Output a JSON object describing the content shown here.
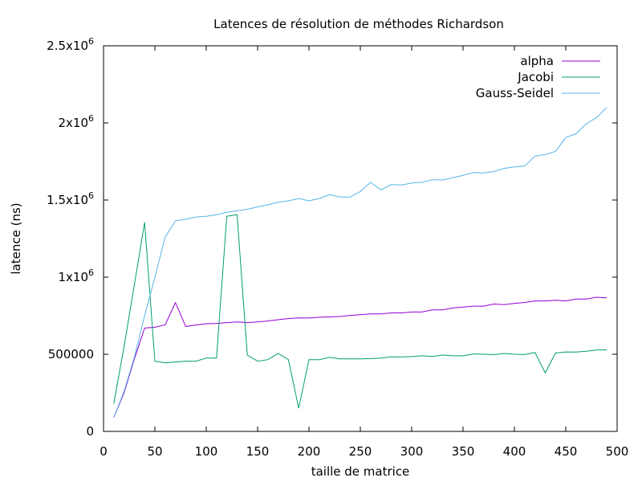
{
  "chart_data": {
    "type": "line",
    "title": "Latences de résolution de méthodes Richardson",
    "xlabel": "taille de matrice",
    "ylabel": "latence (ns)",
    "xlim": [
      0,
      500
    ],
    "ylim": [
      0,
      2500000
    ],
    "x_ticks": [
      0,
      50,
      100,
      150,
      200,
      250,
      300,
      350,
      400,
      450,
      500
    ],
    "y_ticks": [
      {
        "value": 0,
        "mant": "0",
        "exp": ""
      },
      {
        "value": 500000,
        "mant": "500000",
        "exp": ""
      },
      {
        "value": 1000000,
        "mant": "1x10",
        "exp": "6"
      },
      {
        "value": 1500000,
        "mant": "1.5x10",
        "exp": "6"
      },
      {
        "value": 2000000,
        "mant": "2x10",
        "exp": "6"
      },
      {
        "value": 2500000,
        "mant": "2.5x10",
        "exp": "6"
      }
    ],
    "grid": false,
    "legend_position": "top-right",
    "x": [
      10,
      20,
      30,
      40,
      50,
      60,
      70,
      80,
      90,
      100,
      110,
      120,
      130,
      140,
      150,
      160,
      170,
      180,
      190,
      200,
      210,
      220,
      230,
      240,
      250,
      260,
      270,
      280,
      290,
      300,
      310,
      320,
      330,
      340,
      350,
      360,
      370,
      380,
      390,
      400,
      410,
      420,
      430,
      440,
      450,
      460,
      470,
      480,
      490
    ],
    "series": [
      {
        "name": "alpha",
        "color": "#9400d3",
        "values": [
          90000,
          250000,
          470000,
          670000,
          675000,
          690000,
          835000,
          680000,
          690000,
          698000,
          700000,
          705000,
          710000,
          705000,
          710000,
          716000,
          724000,
          732000,
          736000,
          735000,
          740000,
          742000,
          745000,
          752000,
          756000,
          762000,
          762000,
          768000,
          768000,
          774000,
          774000,
          788000,
          788000,
          800000,
          806000,
          812000,
          812000,
          826000,
          822000,
          830000,
          836000,
          846000,
          846000,
          850000,
          846000,
          858000,
          858000,
          870000,
          866000
        ]
      },
      {
        "name": "Jacobi",
        "color": "#009e73",
        "values": [
          180000,
          550000,
          950000,
          1355000,
          455000,
          445000,
          450000,
          455000,
          455000,
          475000,
          475000,
          1395000,
          1405000,
          495000,
          455000,
          465000,
          505000,
          465000,
          150000,
          465000,
          465000,
          480000,
          470000,
          470000,
          470000,
          472000,
          475000,
          483000,
          483000,
          485000,
          490000,
          486000,
          495000,
          490000,
          490000,
          502000,
          500000,
          498000,
          505000,
          500000,
          498000,
          512000,
          380000,
          508000,
          515000,
          514000,
          520000,
          528000,
          528000
        ]
      },
      {
        "name": "Gauss-Seidel",
        "color": "#56b4e9",
        "values": [
          90000,
          260000,
          480000,
          750000,
          1000000,
          1260000,
          1365000,
          1375000,
          1390000,
          1395000,
          1405000,
          1420000,
          1430000,
          1440000,
          1455000,
          1470000,
          1485000,
          1495000,
          1510000,
          1495000,
          1510000,
          1535000,
          1520000,
          1520000,
          1555000,
          1615000,
          1565000,
          1600000,
          1598000,
          1610000,
          1615000,
          1632000,
          1630000,
          1645000,
          1660000,
          1678000,
          1675000,
          1685000,
          1705000,
          1715000,
          1720000,
          1785000,
          1795000,
          1815000,
          1905000,
          1930000,
          1995000,
          2035000,
          2100000
        ]
      }
    ]
  }
}
